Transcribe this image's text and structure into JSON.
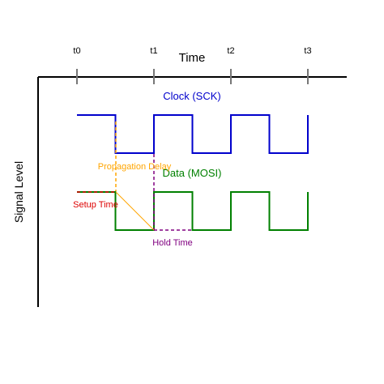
{
  "diagram": {
    "x_axis_label": "Time",
    "y_axis_label": "Signal Level",
    "ticks": [
      "t0",
      "t1",
      "t2",
      "t3"
    ],
    "signals": {
      "clock": {
        "label": "Clock (SCK)",
        "color": "#0000cc",
        "levels": [
          1,
          0,
          1,
          0,
          1,
          0,
          1
        ]
      },
      "data": {
        "label": "Data (MOSI)",
        "color": "#008000",
        "levels": [
          1,
          0,
          1,
          0,
          1,
          0,
          1
        ]
      }
    },
    "annotations": {
      "propagation_delay": {
        "label": "Propagation Delay",
        "color": "#ffa500"
      },
      "setup_time": {
        "label": "Setup Time",
        "color": "#dd0000"
      },
      "hold_time": {
        "label": "Hold Time",
        "color": "#800080"
      }
    }
  }
}
